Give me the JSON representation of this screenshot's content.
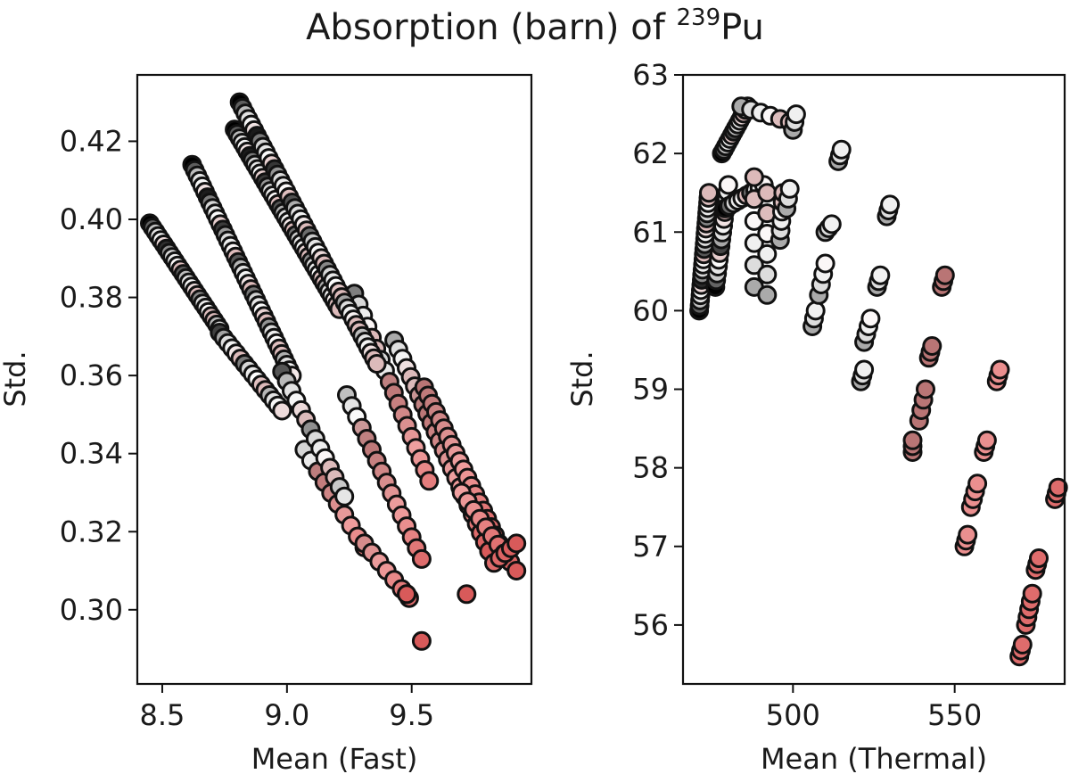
{
  "figure": {
    "title_main": "Absorption (barn) of ",
    "title_sup": "239",
    "title_tail": "Pu"
  },
  "chart_data": [
    {
      "type": "scatter",
      "title": "",
      "xlabel": "Mean (Fast)",
      "ylabel": "Std.",
      "xlim": [
        8.4,
        9.98
      ],
      "ylim": [
        0.281,
        0.437
      ],
      "xticks": [
        8.5,
        9.0,
        9.5
      ],
      "xtick_labels": [
        "8.5",
        "9.0",
        "9.5"
      ],
      "yticks": [
        0.3,
        0.32,
        0.34,
        0.36,
        0.38,
        0.4,
        0.42
      ],
      "ytick_labels": [
        "0.30",
        "0.32",
        "0.34",
        "0.36",
        "0.38",
        "0.40",
        "0.42"
      ],
      "grid": false,
      "color_scale": [
        "#000000",
        "#d4d4d4",
        "#ffffff",
        "#b97575",
        "#f0a0a0",
        "#d85a5a"
      ],
      "groups": [
        {
          "x0": 8.45,
          "y0": 0.399,
          "dx": 0.28,
          "dy": -0.027,
          "n": 26,
          "c0": 0.0,
          "c1": 0.45
        },
        {
          "x0": 8.73,
          "y0": 0.371,
          "dx": 0.25,
          "dy": -0.02,
          "n": 16,
          "c0": 0.15,
          "c1": 0.5
        },
        {
          "x0": 9.07,
          "y0": 0.341,
          "dx": 0.24,
          "dy": -0.025,
          "n": 10,
          "c0": 0.5,
          "c1": 0.9
        },
        {
          "x0": 9.31,
          "y0": 0.317,
          "dx": 0.18,
          "dy": -0.014,
          "n": 7,
          "c0": 0.7,
          "c1": 0.95
        },
        {
          "x0": 8.62,
          "y0": 0.414,
          "dx": 0.4,
          "dy": -0.054,
          "n": 40,
          "c0": 0.0,
          "c1": 0.45
        },
        {
          "x0": 8.98,
          "y0": 0.361,
          "dx": 0.25,
          "dy": -0.032,
          "n": 14,
          "c0": 0.2,
          "c1": 0.5
        },
        {
          "x0": 9.24,
          "y0": 0.355,
          "dx": 0.3,
          "dy": -0.042,
          "n": 16,
          "c0": 0.45,
          "c1": 0.95
        },
        {
          "x0": 8.79,
          "y0": 0.423,
          "dx": 0.42,
          "dy": -0.046,
          "n": 42,
          "c0": 0.0,
          "c1": 0.45
        },
        {
          "x0": 9.27,
          "y0": 0.381,
          "dx": 0.3,
          "dy": -0.048,
          "n": 18,
          "c0": 0.3,
          "c1": 0.9
        },
        {
          "x0": 8.81,
          "y0": 0.43,
          "dx": 0.55,
          "dy": -0.067,
          "n": 48,
          "c0": 0.0,
          "c1": 0.5
        },
        {
          "x0": 9.43,
          "y0": 0.369,
          "dx": 0.38,
          "dy": -0.054,
          "n": 24,
          "c0": 0.4,
          "c1": 1.0
        },
        {
          "x0": 9.55,
          "y0": 0.357,
          "dx": 0.3,
          "dy": -0.04,
          "n": 20,
          "c0": 0.6,
          "c1": 1.0
        },
        {
          "x0": 9.7,
          "y0": 0.33,
          "dx": 0.22,
          "dy": -0.02,
          "n": 10,
          "c0": 0.8,
          "c1": 1.0
        },
        {
          "x0": 9.48,
          "y0": 0.304,
          "dx": 0.0,
          "dy": 0.0,
          "n": 2,
          "c0": 0.9,
          "c1": 1.0
        },
        {
          "x0": 9.54,
          "y0": 0.292,
          "dx": 0.0,
          "dy": 0.0,
          "n": 1,
          "c0": 1.0,
          "c1": 1.0
        },
        {
          "x0": 9.72,
          "y0": 0.304,
          "dx": 0.0,
          "dy": 0.0,
          "n": 1,
          "c0": 1.0,
          "c1": 1.0
        },
        {
          "x0": 9.83,
          "y0": 0.312,
          "dx": 0.09,
          "dy": 0.005,
          "n": 5,
          "c0": 0.95,
          "c1": 1.0
        }
      ]
    },
    {
      "type": "scatter",
      "title": "",
      "xlabel": "Mean (Thermal)",
      "ylabel": "Std.",
      "xlim": [
        466,
        584
      ],
      "ylim": [
        55.25,
        63.0
      ],
      "xticks": [
        500,
        550
      ],
      "xtick_labels": [
        "500",
        "550"
      ],
      "yticks": [
        56,
        57,
        58,
        59,
        60,
        61,
        62,
        63
      ],
      "ytick_labels": [
        "56",
        "57",
        "58",
        "59",
        "60",
        "61",
        "62",
        "63"
      ],
      "grid": false,
      "color_scale": [
        "#000000",
        "#d4d4d4",
        "#ffffff",
        "#b97575",
        "#f0a0a0",
        "#d85a5a"
      ],
      "groups": [
        {
          "x0": 471,
          "y0": 60.0,
          "dx": 3,
          "dy": 1.5,
          "n": 24,
          "c0": 0.0,
          "c1": 0.4
        },
        {
          "x0": 476,
          "y0": 60.3,
          "dx": 4,
          "dy": 1.3,
          "n": 16,
          "c0": 0.0,
          "c1": 0.4
        },
        {
          "x0": 478,
          "y0": 62.0,
          "dx": 8,
          "dy": 0.6,
          "n": 14,
          "c0": 0.0,
          "c1": 0.4
        },
        {
          "x0": 484,
          "y0": 62.6,
          "dx": 15,
          "dy": -0.2,
          "n": 6,
          "c0": 0.4,
          "c1": 0.4
        },
        {
          "x0": 479,
          "y0": 61.3,
          "dx": 12,
          "dy": 0.3,
          "n": 10,
          "c0": 0.0,
          "c1": 0.4
        },
        {
          "x0": 488,
          "y0": 60.3,
          "dx": 0,
          "dy": 1.4,
          "n": 6,
          "c0": 0.4,
          "c1": 0.4
        },
        {
          "x0": 492,
          "y0": 60.2,
          "dx": 0,
          "dy": 1.3,
          "n": 6,
          "c0": 0.4,
          "c1": 0.4
        },
        {
          "x0": 496,
          "y0": 60.9,
          "dx": 1,
          "dy": 0.6,
          "n": 6,
          "c0": 0.4,
          "c1": 0.4
        },
        {
          "x0": 498,
          "y0": 61.3,
          "dx": 1,
          "dy": 0.25,
          "n": 3,
          "c0": 0.4,
          "c1": 0.4
        },
        {
          "x0": 500,
          "y0": 62.3,
          "dx": 1,
          "dy": 0.2,
          "n": 3,
          "c0": 0.4,
          "c1": 0.4
        },
        {
          "x0": 506,
          "y0": 59.8,
          "dx": 1,
          "dy": 0.2,
          "n": 3,
          "c0": 0.4,
          "c1": 0.4
        },
        {
          "x0": 508,
          "y0": 60.2,
          "dx": 2,
          "dy": 0.4,
          "n": 4,
          "c0": 0.4,
          "c1": 0.4
        },
        {
          "x0": 510,
          "y0": 61.0,
          "dx": 2,
          "dy": 0.1,
          "n": 3,
          "c0": 0.4,
          "c1": 0.4
        },
        {
          "x0": 514,
          "y0": 61.9,
          "dx": 1,
          "dy": 0.15,
          "n": 3,
          "c0": 0.4,
          "c1": 0.4
        },
        {
          "x0": 521,
          "y0": 59.1,
          "dx": 1,
          "dy": 0.15,
          "n": 3,
          "c0": 0.4,
          "c1": 0.4
        },
        {
          "x0": 522,
          "y0": 59.6,
          "dx": 2,
          "dy": 0.3,
          "n": 4,
          "c0": 0.4,
          "c1": 0.4
        },
        {
          "x0": 526,
          "y0": 60.3,
          "dx": 1,
          "dy": 0.15,
          "n": 3,
          "c0": 0.4,
          "c1": 0.4
        },
        {
          "x0": 529,
          "y0": 61.2,
          "dx": 1,
          "dy": 0.15,
          "n": 3,
          "c0": 0.4,
          "c1": 0.4
        },
        {
          "x0": 537,
          "y0": 58.2,
          "dx": 0,
          "dy": 0.15,
          "n": 3,
          "c0": 0.6,
          "c1": 0.6
        },
        {
          "x0": 539,
          "y0": 58.6,
          "dx": 2,
          "dy": 0.4,
          "n": 4,
          "c0": 0.6,
          "c1": 0.6
        },
        {
          "x0": 542,
          "y0": 59.4,
          "dx": 1,
          "dy": 0.15,
          "n": 3,
          "c0": 0.6,
          "c1": 0.6
        },
        {
          "x0": 546,
          "y0": 60.3,
          "dx": 1,
          "dy": 0.15,
          "n": 3,
          "c0": 0.6,
          "c1": 0.6
        },
        {
          "x0": 553,
          "y0": 57.0,
          "dx": 1,
          "dy": 0.15,
          "n": 3,
          "c0": 0.85,
          "c1": 0.85
        },
        {
          "x0": 555,
          "y0": 57.5,
          "dx": 2,
          "dy": 0.3,
          "n": 4,
          "c0": 0.85,
          "c1": 0.85
        },
        {
          "x0": 559,
          "y0": 58.2,
          "dx": 1,
          "dy": 0.15,
          "n": 3,
          "c0": 0.85,
          "c1": 0.85
        },
        {
          "x0": 563,
          "y0": 59.1,
          "dx": 1,
          "dy": 0.15,
          "n": 3,
          "c0": 0.85,
          "c1": 0.85
        },
        {
          "x0": 570,
          "y0": 55.6,
          "dx": 1,
          "dy": 0.15,
          "n": 3,
          "c0": 0.95,
          "c1": 0.95
        },
        {
          "x0": 572,
          "y0": 56.0,
          "dx": 2,
          "dy": 0.4,
          "n": 5,
          "c0": 0.95,
          "c1": 0.95
        },
        {
          "x0": 575,
          "y0": 56.7,
          "dx": 1,
          "dy": 0.15,
          "n": 3,
          "c0": 0.95,
          "c1": 0.95
        },
        {
          "x0": 581,
          "y0": 57.6,
          "dx": 1,
          "dy": 0.15,
          "n": 3,
          "c0": 0.95,
          "c1": 0.95
        }
      ]
    }
  ]
}
